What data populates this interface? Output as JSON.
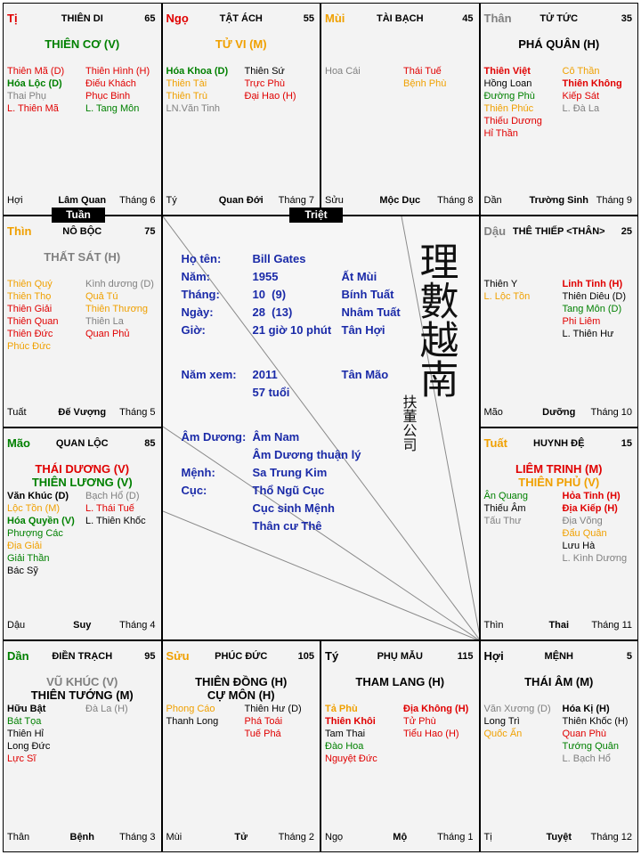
{
  "cells": [
    {
      "branch": "Tị",
      "branch_color": "#e00000",
      "palace": "THIÊN DI",
      "number": 65,
      "main": [
        {
          "text": "THIÊN CƠ (V)",
          "color": "#008000"
        }
      ],
      "left": [
        {
          "text": "Thiên Mã (D)",
          "color": "#e00000"
        },
        {
          "text": "Hóa Lộc (D)",
          "color": "#008000",
          "bold": true
        },
        {
          "text": "Thai Phụ",
          "color": "#808080"
        },
        {
          "text": "L. Thiên Mã",
          "color": "#e00000"
        }
      ],
      "right": [
        {
          "text": "Thiên Hình (H)",
          "color": "#e00000"
        },
        {
          "text": "Điếu Khách",
          "color": "#e00000"
        },
        {
          "text": "Phục Binh",
          "color": "#e00000"
        },
        {
          "text": "L. Tang Môn",
          "color": "#008000"
        }
      ],
      "corner": "Hợi",
      "stage": "Lâm Quan",
      "month": "Tháng 6"
    },
    {
      "branch": "Ngọ",
      "branch_color": "#e00000",
      "palace": "TẬT ÁCH",
      "number": 55,
      "main": [
        {
          "text": "TỬ VI (M)",
          "color": "#f0a000"
        }
      ],
      "left": [
        {
          "text": "Hóa Khoa (D)",
          "color": "#008000",
          "bold": true
        },
        {
          "text": "Thiên Tài",
          "color": "#f0a000"
        },
        {
          "text": "Thiên Trù",
          "color": "#f0a000"
        },
        {
          "text": "LN.Văn Tinh",
          "color": "#808080"
        }
      ],
      "right": [
        {
          "text": "Thiên Sứ",
          "color": "#000000"
        },
        {
          "text": "Trực Phù",
          "color": "#e00000"
        },
        {
          "text": "Đại Hao (H)",
          "color": "#e00000"
        }
      ],
      "corner": "Tý",
      "stage": "Quan Đới",
      "month": "Tháng 7"
    },
    {
      "branch": "Mùi",
      "branch_color": "#f0a000",
      "palace": "TÀI BẠCH",
      "number": 45,
      "main": [],
      "left": [
        {
          "text": "Hoa Cái",
          "color": "#808080"
        }
      ],
      "right": [
        {
          "text": "Thái Tuế",
          "color": "#e00000"
        },
        {
          "text": "Bệnh Phù",
          "color": "#f0a000"
        }
      ],
      "corner": "Sửu",
      "stage": "Mộc Dục",
      "month": "Tháng 8"
    },
    {
      "branch": "Thân",
      "branch_color": "#808080",
      "palace": "TỬ TỨC",
      "number": 35,
      "main": [
        {
          "text": "PHÁ QUÂN (H)",
          "color": "#000000"
        }
      ],
      "left": [
        {
          "text": "Thiên Việt",
          "color": "#e00000",
          "bold": true
        },
        {
          "text": "Hồng Loan",
          "color": "#000000"
        },
        {
          "text": "Đường Phù",
          "color": "#008000"
        },
        {
          "text": "Thiên Phúc",
          "color": "#f0a000"
        },
        {
          "text": "Thiếu Dương",
          "color": "#e00000"
        },
        {
          "text": "Hỉ Thần",
          "color": "#e00000"
        }
      ],
      "right": [
        {
          "text": "Cô Thần",
          "color": "#f0a000"
        },
        {
          "text": "Thiên Không",
          "color": "#e00000",
          "bold": true
        },
        {
          "text": "Kiếp Sát",
          "color": "#e00000"
        },
        {
          "text": "L. Đà La",
          "color": "#808080"
        }
      ],
      "corner": "Dần",
      "stage": "Trường Sinh",
      "month": "Tháng 9"
    },
    {
      "branch": "Thìn",
      "branch_color": "#f0a000",
      "palace": "NÔ BỘC",
      "number": 75,
      "main": [
        {
          "text": "THẤT SÁT (H)",
          "color": "#808080"
        }
      ],
      "left": [
        {
          "text": "Thiên Quý",
          "color": "#f0a000"
        },
        {
          "text": "Thiên Thọ",
          "color": "#f0a000"
        },
        {
          "text": "Thiên Giải",
          "color": "#e00000"
        },
        {
          "text": "Thiên Quan",
          "color": "#e00000"
        },
        {
          "text": "Thiên Đức",
          "color": "#e00000"
        },
        {
          "text": "Phúc Đức",
          "color": "#f0a000"
        }
      ],
      "right": [
        {
          "text": "Kình dương (D)",
          "color": "#808080"
        },
        {
          "text": "Quả Tú",
          "color": "#f0a000"
        },
        {
          "text": "Thiên Thương",
          "color": "#f0a000"
        },
        {
          "text": "Thiên La",
          "color": "#808080"
        },
        {
          "text": "Quan Phủ",
          "color": "#e00000"
        }
      ],
      "corner": "Tuất",
      "stage": "Đế Vượng",
      "month": "Tháng 5"
    },
    {
      "branch": "Dậu",
      "branch_color": "#808080",
      "palace": "THÊ THIẾP <THÂN>",
      "number": 25,
      "main": [],
      "left": [
        {
          "text": "Thiên Y",
          "color": "#000000"
        },
        {
          "text": "L. Lộc Tồn",
          "color": "#f0a000"
        }
      ],
      "right": [
        {
          "text": "Linh Tinh (H)",
          "color": "#e00000",
          "bold": true
        },
        {
          "text": "Thiên Diêu (D)",
          "color": "#000000"
        },
        {
          "text": "Tang Môn (D)",
          "color": "#008000"
        },
        {
          "text": "Phi Liêm",
          "color": "#e00000"
        },
        {
          "text": "L. Thiên Hư",
          "color": "#000000"
        }
      ],
      "corner": "Mão",
      "stage": "Dưỡng",
      "month": "Tháng 10"
    },
    {
      "branch": "Mão",
      "branch_color": "#008000",
      "palace": "QUAN LỘC",
      "number": 85,
      "main": [
        {
          "text": "THÁI DƯƠNG (V)",
          "color": "#e00000"
        },
        {
          "text": "THIÊN LƯƠNG (V)",
          "color": "#008000"
        }
      ],
      "left": [
        {
          "text": "Văn Khúc (D)",
          "color": "#000000",
          "bold": true
        },
        {
          "text": "Lộc Tồn (M)",
          "color": "#f0a000"
        },
        {
          "text": "Hóa Quyền (V)",
          "color": "#008000",
          "bold": true
        },
        {
          "text": "Phượng Các",
          "color": "#008000"
        },
        {
          "text": "Địa Giải",
          "color": "#f0a000"
        },
        {
          "text": "Giải Thần",
          "color": "#008000"
        },
        {
          "text": "Bác Sỹ",
          "color": "#000000"
        }
      ],
      "right": [
        {
          "text": "Bạch Hổ (D)",
          "color": "#808080"
        },
        {
          "text": "L. Thái Tuế",
          "color": "#e00000"
        },
        {
          "text": "L. Thiên Khốc",
          "color": "#000000"
        }
      ],
      "corner": "Dậu",
      "stage": "Suy",
      "month": "Tháng 4"
    },
    {
      "branch": "Tuất",
      "branch_color": "#f0a000",
      "palace": "HUYNH ĐỆ",
      "number": 15,
      "main": [
        {
          "text": "LIÊM TRINH (M)",
          "color": "#e00000"
        },
        {
          "text": "THIÊN PHỦ (V)",
          "color": "#f0a000"
        }
      ],
      "left": [
        {
          "text": "Ân Quang",
          "color": "#008000"
        },
        {
          "text": "Thiếu Âm",
          "color": "#000000"
        },
        {
          "text": "Tấu Thư",
          "color": "#808080"
        }
      ],
      "right": [
        {
          "text": "Hỏa Tinh (H)",
          "color": "#e00000",
          "bold": true
        },
        {
          "text": "Địa Kiếp (H)",
          "color": "#e00000",
          "bold": true
        },
        {
          "text": "Địa Võng",
          "color": "#808080"
        },
        {
          "text": "Đẩu Quân",
          "color": "#f0a000"
        },
        {
          "text": "Lưu Hà",
          "color": "#000000"
        },
        {
          "text": "L. Kình Dương",
          "color": "#808080"
        }
      ],
      "corner": "Thìn",
      "stage": "Thai",
      "month": "Tháng 11"
    },
    {
      "branch": "Dần",
      "branch_color": "#008000",
      "palace": "ĐIỀN TRẠCH",
      "number": 95,
      "main": [
        {
          "text": "VŨ KHÚC (V)",
          "color": "#808080"
        },
        {
          "text": "THIÊN TƯỚNG (M)",
          "color": "#000000"
        }
      ],
      "left": [
        {
          "text": "Hữu Bật",
          "color": "#000000",
          "bold": true
        },
        {
          "text": "Bát Tọa",
          "color": "#008000"
        },
        {
          "text": "Thiên Hỉ",
          "color": "#000000"
        },
        {
          "text": "Long Đức",
          "color": "#000000"
        },
        {
          "text": "Lực Sĩ",
          "color": "#e00000"
        }
      ],
      "right": [
        {
          "text": "Đà La (H)",
          "color": "#808080"
        }
      ],
      "corner": "Thân",
      "stage": "Bệnh",
      "month": "Tháng 3"
    },
    {
      "branch": "Sửu",
      "branch_color": "#f0a000",
      "palace": "PHÚC ĐỨC",
      "number": 105,
      "main": [
        {
          "text": "THIÊN ĐỒNG (H)",
          "color": "#000000"
        },
        {
          "text": "CỰ MÔN (H)",
          "color": "#000000"
        }
      ],
      "left": [
        {
          "text": "Phong Cáo",
          "color": "#f0a000"
        },
        {
          "text": "Thanh Long",
          "color": "#000000"
        }
      ],
      "right": [
        {
          "text": "Thiên Hư (D)",
          "color": "#000000"
        },
        {
          "text": "Phá Toái",
          "color": "#e00000"
        },
        {
          "text": "Tuế Phá",
          "color": "#e00000"
        }
      ],
      "corner": "Mùi",
      "stage": "Tử",
      "month": "Tháng 2"
    },
    {
      "branch": "Tý",
      "branch_color": "#000000",
      "palace": "PHỤ MẪU",
      "number": 115,
      "main": [
        {
          "text": "THAM LANG (H)",
          "color": "#000000"
        }
      ],
      "left": [
        {
          "text": "Tả Phù",
          "color": "#f0a000",
          "bold": true
        },
        {
          "text": "Thiên Khôi",
          "color": "#e00000",
          "bold": true
        },
        {
          "text": "Tam Thai",
          "color": "#000000"
        },
        {
          "text": "Đào Hoa",
          "color": "#008000"
        },
        {
          "text": "Nguyệt Đức",
          "color": "#e00000"
        }
      ],
      "right": [
        {
          "text": "Địa Không (H)",
          "color": "#e00000",
          "bold": true
        },
        {
          "text": "Tử Phù",
          "color": "#e00000"
        },
        {
          "text": "Tiểu Hao (H)",
          "color": "#e00000"
        }
      ],
      "corner": "Ngọ",
      "stage": "Mộ",
      "month": "Tháng 1"
    },
    {
      "branch": "Hợi",
      "branch_color": "#000000",
      "palace": "MỆNH",
      "number": 5,
      "main": [
        {
          "text": "THÁI ÂM (M)",
          "color": "#000000"
        }
      ],
      "left": [
        {
          "text": "Văn Xương (D)",
          "color": "#808080"
        },
        {
          "text": "Long Trì",
          "color": "#000000"
        },
        {
          "text": "Quốc Ấn",
          "color": "#f0a000"
        }
      ],
      "right": [
        {
          "text": "Hóa Kị (H)",
          "color": "#000000",
          "bold": true
        },
        {
          "text": "Thiên Khốc (H)",
          "color": "#000000"
        },
        {
          "text": "Quan Phù",
          "color": "#e00000"
        },
        {
          "text": "Tướng Quân",
          "color": "#008000"
        },
        {
          "text": "L. Bạch Hổ",
          "color": "#808080"
        }
      ],
      "corner": "Tị",
      "stage": "Tuyệt",
      "month": "Tháng 12"
    }
  ],
  "badges": [
    "Tuần",
    "Triệt"
  ],
  "center": {
    "blocks": [
      [
        {
          "label": "Họ tên:",
          "value": "Bill Gates"
        },
        {
          "label": "Năm:",
          "value": "1955",
          "extra": "Ất Mùi"
        },
        {
          "label": "Tháng:",
          "value": "10  (9)",
          "extra": "Bính Tuất"
        },
        {
          "label": "Ngày:",
          "value": "28  (13)",
          "extra": "Nhâm Tuất"
        },
        {
          "label": "Giờ:",
          "value": "21 giờ 10 phút",
          "extra": "Tân Hợi"
        }
      ],
      [
        {
          "label": "Năm xem:",
          "value": "2011",
          "extra": "Tân Mão"
        },
        {
          "value": "57 tuổi"
        }
      ],
      [
        {
          "label": "Âm Dương:",
          "value": "Âm Nam"
        },
        {
          "value": "Âm Dương thuận lý"
        },
        {
          "label": "Mệnh:",
          "value": "Sa Trung Kim"
        },
        {
          "label": "Cục:",
          "value": "Thổ Ngũ Cục"
        },
        {
          "value": "Cục sinh Mệnh"
        },
        {
          "value": "Thân cư Thê"
        }
      ]
    ],
    "calligraphy": "理數越南",
    "signature": "扶董公司"
  }
}
